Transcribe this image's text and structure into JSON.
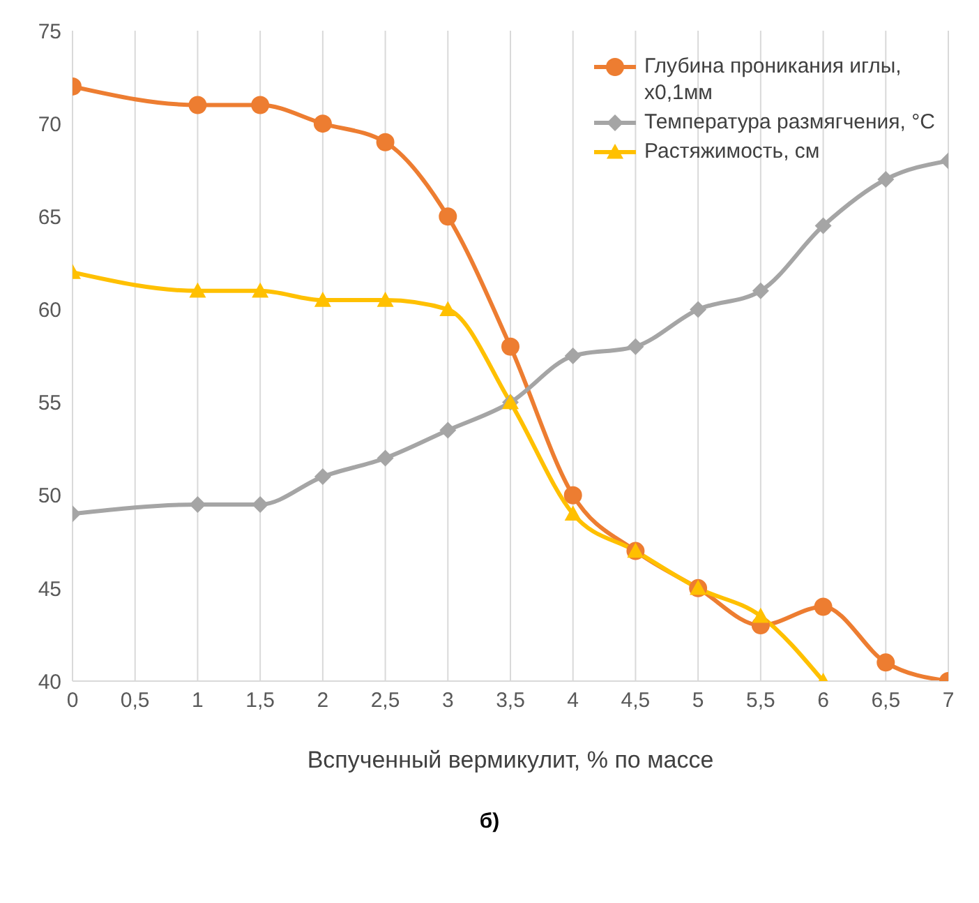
{
  "chart_data": {
    "type": "line",
    "xlabel": "Вспученный  вермикулит,  %  по массе",
    "annotations": [
      "б)"
    ],
    "x": [
      0,
      1,
      1.5,
      2,
      2.5,
      3,
      3.5,
      4,
      4.5,
      5,
      5.5,
      6,
      6.5,
      7
    ],
    "series": [
      {
        "name": "Глубина проникания иглы, x0,1мм",
        "color": "#ed7d31",
        "marker": "circle",
        "values": [
          72,
          71,
          71,
          70,
          69,
          65,
          58,
          50,
          47,
          45,
          43,
          44,
          41,
          40
        ]
      },
      {
        "name": "Температура размягчения, °С",
        "color": "#a5a5a5",
        "marker": "diamond",
        "values": [
          49,
          49.5,
          49.5,
          51,
          52,
          53.5,
          55,
          57.5,
          58,
          60,
          61,
          64.5,
          67,
          68
        ]
      },
      {
        "name": "Растяжимость, см",
        "color": "#ffc000",
        "marker": "triangle",
        "values": [
          62,
          61,
          61,
          60.5,
          60.5,
          60,
          55,
          49,
          47,
          45,
          43.5,
          40,
          null,
          null
        ]
      }
    ],
    "xlim": [
      0,
      7
    ],
    "xticks": [
      0,
      {
        "value": 0.5,
        "label": "0,5"
      },
      1,
      {
        "value": 1.5,
        "label": "1,5"
      },
      2,
      {
        "value": 2.5,
        "label": "2,5"
      },
      3,
      {
        "value": 3.5,
        "label": "3,5"
      },
      4,
      {
        "value": 4.5,
        "label": "4,5"
      },
      5,
      {
        "value": 5.5,
        "label": "5,5"
      },
      6,
      {
        "value": 6.5,
        "label": "6,5"
      },
      7
    ],
    "ylim": [
      40,
      75
    ],
    "yticks": [
      40,
      45,
      50,
      55,
      60,
      65,
      70,
      75
    ],
    "grid": "x",
    "legend": "top right"
  }
}
